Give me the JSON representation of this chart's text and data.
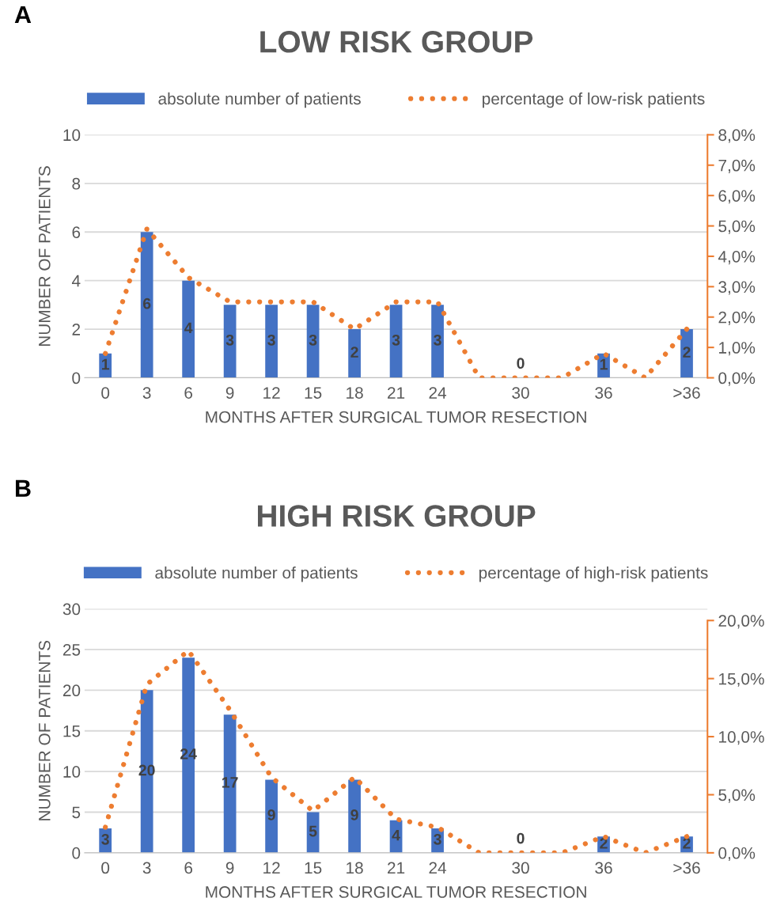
{
  "chart_data": [
    {
      "type": "bar",
      "title": "LOW RISK GROUP",
      "annotations": [
        "A"
      ],
      "xlabel": "MONTHS AFTER SURGICAL TUMOR RESECTION",
      "ylabel": "NUMBER OF PATIENTS",
      "categories": [
        "0",
        "3",
        "6",
        "9",
        "12",
        "15",
        "18",
        "21",
        "24",
        null,
        "30",
        null,
        "36",
        null,
        ">36"
      ],
      "series": [
        {
          "name": "absolute number of patients",
          "color": "#4472c4",
          "values": [
            1,
            6,
            4,
            3,
            3,
            3,
            2,
            3,
            3,
            null,
            0,
            null,
            1,
            null,
            2
          ],
          "value_labels": [
            "1",
            "6",
            "4",
            "3",
            "3",
            "3",
            "2",
            "3",
            "3",
            null,
            "0",
            null,
            "1",
            null,
            "2"
          ]
        },
        {
          "name": "percentage of low-risk patients",
          "type": "line",
          "axis": "y2",
          "color": "#ed7d31",
          "line_style": "dotted",
          "values": [
            0.8,
            4.9,
            3.3,
            2.5,
            2.5,
            2.5,
            1.6,
            2.5,
            2.5,
            0,
            0,
            0,
            0.8,
            0,
            1.6
          ]
        }
      ],
      "ylim": [
        0,
        10
      ],
      "yticks": [
        0,
        2,
        4,
        6,
        8,
        10
      ],
      "y2lim": [
        0,
        8
      ],
      "y2ticks": [
        {
          "value": 0,
          "label": "0,0%"
        },
        {
          "value": 1,
          "label": "1,0%"
        },
        {
          "value": 2,
          "label": "2,0%"
        },
        {
          "value": 3,
          "label": "3,0%"
        },
        {
          "value": 4,
          "label": "4,0%"
        },
        {
          "value": 5,
          "label": "5,0%"
        },
        {
          "value": 6,
          "label": "6,0%"
        },
        {
          "value": 7,
          "label": "7,0%"
        },
        {
          "value": 8,
          "label": "8,0%"
        }
      ],
      "grid": "y",
      "legend": "top"
    },
    {
      "type": "bar",
      "title": "HIGH RISK GROUP",
      "annotations": [
        "B"
      ],
      "xlabel": "MONTHS AFTER SURGICAL TUMOR RESECTION",
      "ylabel": "NUMBER OF PATIENTS",
      "categories": [
        "0",
        "3",
        "6",
        "9",
        "12",
        "15",
        "18",
        "21",
        "24",
        null,
        "30",
        null,
        "36",
        null,
        ">36"
      ],
      "series": [
        {
          "name": "absolute number of patients",
          "color": "#4472c4",
          "values": [
            3,
            20,
            24,
            17,
            9,
            5,
            9,
            4,
            3,
            null,
            0,
            null,
            2,
            null,
            2
          ],
          "value_labels": [
            "3",
            "20",
            "24",
            "17",
            "9",
            "5",
            "9",
            "4",
            "3",
            null,
            "0",
            null,
            "2",
            null,
            "2"
          ]
        },
        {
          "name": "percentage of high-risk patients",
          "type": "line",
          "axis": "y2",
          "color": "#ed7d31",
          "line_style": "dotted",
          "values": [
            2.2,
            14.5,
            17.4,
            12.3,
            6.5,
            3.6,
            6.5,
            2.9,
            2.2,
            0,
            0,
            0,
            1.4,
            0,
            1.4
          ]
        }
      ],
      "ylim": [
        0,
        30
      ],
      "yticks": [
        0,
        5,
        10,
        15,
        20,
        25,
        30
      ],
      "y2lim": [
        0,
        21
      ],
      "y2ticks": [
        {
          "value": 0,
          "label": "0,0%"
        },
        {
          "value": 5,
          "label": "5,0%"
        },
        {
          "value": 10,
          "label": "10,0%"
        },
        {
          "value": 15,
          "label": "15,0%"
        },
        {
          "value": 20,
          "label": "20,0%"
        }
      ],
      "grid": "y",
      "legend": "top"
    }
  ]
}
